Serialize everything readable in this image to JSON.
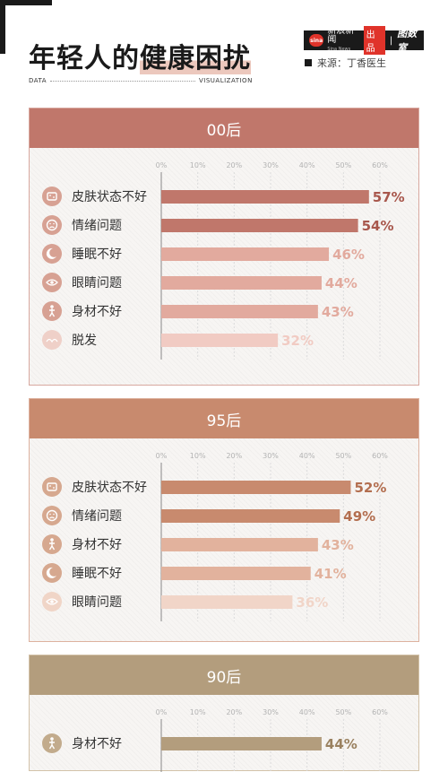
{
  "header": {
    "title_main": "年轻人的",
    "title_highlight": "健康困扰",
    "brand": {
      "logo_text": "sina",
      "name": "新浪新闻",
      "name_sub": "Sina News",
      "produced": "出品",
      "tool": "图数室"
    },
    "source": "来源：丁香医生",
    "data_label": "DATA",
    "viz_label": "VISUALIZATION"
  },
  "colors": {
    "panels": [
      {
        "header": "#c0776b",
        "border": "#d8a89f",
        "text_strong": "#a8574c",
        "bar_strong": "#c0776b",
        "bar_mid": "#e2aa9e",
        "bar_light": "#f1cbc3",
        "icon": "#d7a193",
        "icon_light": "#efd0c8",
        "text_mid": "#e2aa9e",
        "text_light": "#f1cbc3"
      },
      {
        "header": "#c88a6e",
        "border": "#ddb29f",
        "text_strong": "#b36e4f",
        "bar_strong": "#c88a6e",
        "bar_mid": "#e2b29d",
        "bar_light": "#f1d5c8",
        "icon": "#d6a88f",
        "icon_light": "#f0d5c7",
        "text_mid": "#e2b29d",
        "text_light": "#f1d5c8"
      },
      {
        "header": "#b39d7d",
        "border": "#d3c2a9",
        "text_strong": "#9a8160",
        "bar_strong": "#b39d7d",
        "bar_mid": "#d3c2a9",
        "bar_light": "#e8dccb",
        "icon": "#c2ab8c",
        "icon_light": "#e3d7c5",
        "text_mid": "#d3c2a9",
        "text_light": "#e8dccb"
      }
    ]
  },
  "chart_data": [
    {
      "type": "bar",
      "orientation": "horizontal",
      "title": "00后",
      "xlim": [
        0,
        60
      ],
      "ticks": [
        "0%",
        "10%",
        "20%",
        "30%",
        "40%",
        "50%",
        "60%"
      ],
      "categories": [
        "皮肤状态不好",
        "情绪问题",
        "睡眠不好",
        "眼睛问题",
        "身材不好",
        "脱发"
      ],
      "icons": [
        "skin-icon",
        "sad-face-icon",
        "moon-icon",
        "eye-icon",
        "body-icon",
        "hair-icon"
      ],
      "values": [
        57,
        54,
        46,
        44,
        43,
        32
      ],
      "value_labels": [
        "57%",
        "54%",
        "46%",
        "44%",
        "43%",
        "32%"
      ],
      "tones": [
        "strong",
        "strong",
        "mid",
        "mid",
        "mid",
        "light"
      ]
    },
    {
      "type": "bar",
      "orientation": "horizontal",
      "title": "95后",
      "xlim": [
        0,
        60
      ],
      "ticks": [
        "0%",
        "10%",
        "20%",
        "30%",
        "40%",
        "50%",
        "60%"
      ],
      "categories": [
        "皮肤状态不好",
        "情绪问题",
        "身材不好",
        "睡眠不好",
        "眼睛问题"
      ],
      "icons": [
        "skin-icon",
        "sad-face-icon",
        "body-icon",
        "moon-icon",
        "eye-icon"
      ],
      "values": [
        52,
        49,
        43,
        41,
        36
      ],
      "value_labels": [
        "52%",
        "49%",
        "43%",
        "41%",
        "36%"
      ],
      "tones": [
        "strong",
        "strong",
        "mid",
        "mid",
        "light"
      ]
    },
    {
      "type": "bar",
      "orientation": "horizontal",
      "title": "90后",
      "xlim": [
        0,
        60
      ],
      "ticks": [
        "0%",
        "10%",
        "20%",
        "30%",
        "40%",
        "50%",
        "60%"
      ],
      "categories": [
        "身材不好"
      ],
      "icons": [
        "body-icon"
      ],
      "values": [
        44
      ],
      "value_labels": [
        "44%"
      ],
      "tones": [
        "strong"
      ]
    }
  ]
}
